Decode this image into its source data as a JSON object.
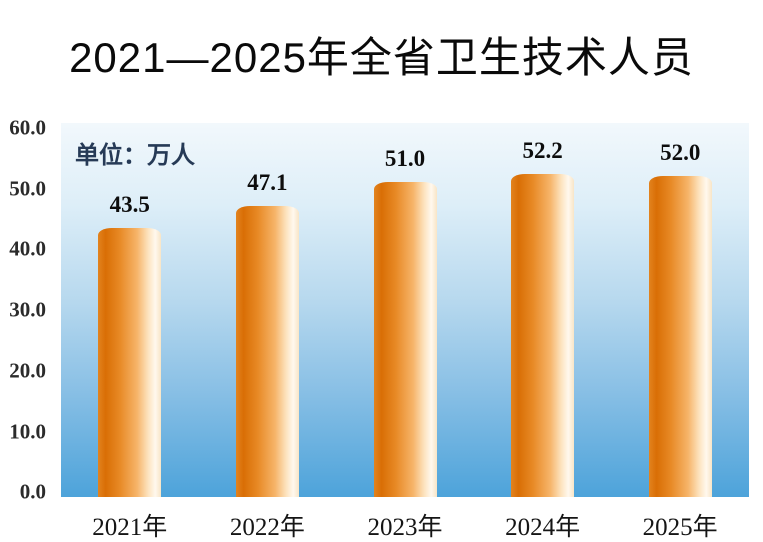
{
  "chart_data": {
    "type": "bar",
    "title": "2021—2025年全省卫生技术人员",
    "unit_label": "单位：万人",
    "categories": [
      "2021年",
      "2022年",
      "2023年",
      "2024年",
      "2025年"
    ],
    "values": [
      43.5,
      47.1,
      51.0,
      52.2,
      52.0
    ],
    "value_labels": [
      "43.5",
      "47.1",
      "51.0",
      "52.2",
      "52.0"
    ],
    "xlabel": "",
    "ylabel": "",
    "ylim": [
      0,
      60
    ],
    "ytick_step": 10,
    "ytick_labels": [
      "60.0",
      "50.0",
      "40.0",
      "30.0",
      "20.0",
      "10.0",
      "0.0"
    ],
    "grid": false,
    "legend_position": "none",
    "colors": {
      "bar_dark": "#d96e05",
      "bar_light": "#fff8ee",
      "plot_bg_top": "#f2f8fc",
      "plot_bg_bottom": "#4da3da",
      "title_color": "#0a0a0a",
      "axis_label_color": "#2b2b2b",
      "unit_label_color": "#263a56"
    }
  }
}
